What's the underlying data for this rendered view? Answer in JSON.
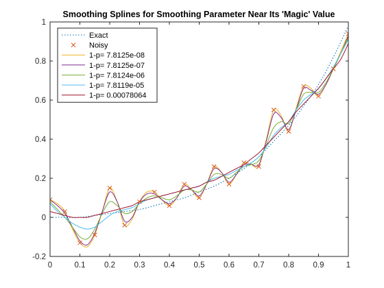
{
  "colors": {
    "exact": "#0072BD",
    "noisy": "#D95319",
    "spline_1": "#EDB120",
    "spline_2": "#7E2F8E",
    "spline_3": "#77AC30",
    "spline_4": "#4DBEEE",
    "spline_5": "#A2142F",
    "axis": "#262626"
  },
  "chart_data": {
    "type": "line",
    "title": "Smoothing Splines for Smoothing Parameter Near Its 'Magic' Value",
    "xlabel": "",
    "ylabel": "",
    "xlim": [
      0,
      1
    ],
    "ylim": [
      -0.2,
      1
    ],
    "x_ticks": [
      0,
      0.1,
      0.2,
      0.3,
      0.4,
      0.5,
      0.6,
      0.7,
      0.8,
      0.9,
      1
    ],
    "x_tick_labels": [
      "0",
      "0.1",
      "0.2",
      "0.3",
      "0.4",
      "0.5",
      "0.6",
      "0.7",
      "0.8",
      "0.9",
      "1"
    ],
    "y_ticks": [
      -0.2,
      0,
      0.2,
      0.4,
      0.6,
      0.8,
      1
    ],
    "y_tick_labels": [
      "-0.2",
      "0",
      "0.2",
      "0.4",
      "0.6",
      "0.8",
      "1"
    ],
    "grid": false,
    "legend_position": "top-left",
    "noisy_points": {
      "x": [
        0,
        0.05,
        0.1,
        0.15,
        0.2,
        0.25,
        0.3,
        0.35,
        0.4,
        0.45,
        0.5,
        0.55,
        0.6,
        0.65,
        0.7,
        0.75,
        0.8,
        0.85,
        0.9,
        0.95,
        1
      ],
      "y": [
        0.09,
        0.03,
        -0.13,
        -0.09,
        0.15,
        -0.04,
        0.08,
        0.13,
        0.06,
        0.17,
        0.1,
        0.26,
        0.17,
        0.28,
        0.26,
        0.55,
        0.44,
        0.67,
        0.62,
        0.76,
        0.94
      ]
    },
    "series": [
      {
        "name": "Exact",
        "style": "dotted",
        "x": [
          0,
          0.05,
          0.1,
          0.15,
          0.2,
          0.25,
          0.3,
          0.35,
          0.4,
          0.45,
          0.5,
          0.55,
          0.6,
          0.65,
          0.7,
          0.75,
          0.8,
          0.85,
          0.9,
          0.95,
          1
        ],
        "y": [
          0.0,
          0.0,
          0.0,
          0.01,
          0.02,
          0.03,
          0.04,
          0.06,
          0.08,
          0.1,
          0.13,
          0.16,
          0.2,
          0.25,
          0.31,
          0.39,
          0.47,
          0.57,
          0.68,
          0.82,
          0.98
        ]
      },
      {
        "name": "1-p= 7.8125e-08",
        "style": "solid",
        "x": [
          0,
          0.025,
          0.05,
          0.075,
          0.1,
          0.125,
          0.15,
          0.175,
          0.2,
          0.225,
          0.25,
          0.275,
          0.3,
          0.325,
          0.35,
          0.375,
          0.4,
          0.425,
          0.45,
          0.475,
          0.5,
          0.525,
          0.55,
          0.575,
          0.6,
          0.625,
          0.65,
          0.675,
          0.7,
          0.725,
          0.75,
          0.775,
          0.8,
          0.825,
          0.85,
          0.875,
          0.9,
          0.925,
          0.95,
          0.975,
          1
        ],
        "y": [
          0.09,
          0.07,
          0.03,
          -0.06,
          -0.13,
          -0.15,
          -0.09,
          0.03,
          0.15,
          0.08,
          -0.04,
          -0.01,
          0.08,
          0.13,
          0.13,
          0.09,
          0.06,
          0.1,
          0.17,
          0.14,
          0.1,
          0.17,
          0.26,
          0.23,
          0.17,
          0.22,
          0.28,
          0.27,
          0.26,
          0.4,
          0.55,
          0.52,
          0.44,
          0.56,
          0.67,
          0.66,
          0.62,
          0.68,
          0.76,
          0.85,
          0.94
        ]
      },
      {
        "name": "1-p= 7.8125e-07",
        "style": "solid",
        "x": [
          0,
          0.025,
          0.05,
          0.075,
          0.1,
          0.125,
          0.15,
          0.175,
          0.2,
          0.225,
          0.25,
          0.275,
          0.3,
          0.325,
          0.35,
          0.375,
          0.4,
          0.425,
          0.45,
          0.475,
          0.5,
          0.525,
          0.55,
          0.575,
          0.6,
          0.625,
          0.65,
          0.675,
          0.7,
          0.725,
          0.75,
          0.775,
          0.8,
          0.825,
          0.85,
          0.875,
          0.9,
          0.925,
          0.95,
          0.975,
          1
        ],
        "y": [
          0.09,
          0.06,
          0.02,
          -0.05,
          -0.12,
          -0.14,
          -0.08,
          0.03,
          0.13,
          0.08,
          -0.02,
          0.0,
          0.08,
          0.12,
          0.12,
          0.09,
          0.07,
          0.1,
          0.16,
          0.14,
          0.11,
          0.17,
          0.25,
          0.23,
          0.18,
          0.22,
          0.27,
          0.27,
          0.27,
          0.39,
          0.53,
          0.51,
          0.45,
          0.55,
          0.66,
          0.65,
          0.63,
          0.68,
          0.76,
          0.84,
          0.93
        ]
      },
      {
        "name": "1-p= 7.8124e-06",
        "style": "solid",
        "x": [
          0,
          0.025,
          0.05,
          0.075,
          0.1,
          0.125,
          0.15,
          0.175,
          0.2,
          0.225,
          0.25,
          0.275,
          0.3,
          0.325,
          0.35,
          0.375,
          0.4,
          0.425,
          0.45,
          0.475,
          0.5,
          0.525,
          0.55,
          0.575,
          0.6,
          0.625,
          0.65,
          0.675,
          0.7,
          0.725,
          0.75,
          0.775,
          0.8,
          0.825,
          0.85,
          0.875,
          0.9,
          0.925,
          0.95,
          0.975,
          1
        ],
        "y": [
          0.08,
          0.04,
          0.0,
          -0.05,
          -0.1,
          -0.11,
          -0.06,
          0.02,
          0.08,
          0.06,
          0.02,
          0.03,
          0.07,
          0.1,
          0.11,
          0.1,
          0.09,
          0.11,
          0.14,
          0.14,
          0.13,
          0.17,
          0.22,
          0.22,
          0.2,
          0.23,
          0.26,
          0.27,
          0.29,
          0.37,
          0.46,
          0.49,
          0.48,
          0.55,
          0.63,
          0.64,
          0.64,
          0.69,
          0.76,
          0.84,
          0.92
        ]
      },
      {
        "name": "1-p= 7.8119e-05",
        "style": "solid",
        "x": [
          0,
          0.025,
          0.05,
          0.075,
          0.1,
          0.125,
          0.15,
          0.175,
          0.2,
          0.225,
          0.25,
          0.275,
          0.3,
          0.325,
          0.35,
          0.375,
          0.4,
          0.425,
          0.45,
          0.475,
          0.5,
          0.525,
          0.55,
          0.575,
          0.6,
          0.625,
          0.65,
          0.675,
          0.7,
          0.725,
          0.75,
          0.775,
          0.8,
          0.825,
          0.85,
          0.875,
          0.9,
          0.925,
          0.95,
          0.975,
          1
        ],
        "y": [
          0.07,
          0.03,
          0.0,
          -0.03,
          -0.05,
          -0.06,
          -0.05,
          -0.02,
          0.01,
          0.03,
          0.04,
          0.05,
          0.07,
          0.09,
          0.1,
          0.11,
          0.12,
          0.13,
          0.14,
          0.15,
          0.16,
          0.18,
          0.2,
          0.21,
          0.22,
          0.24,
          0.26,
          0.28,
          0.31,
          0.36,
          0.42,
          0.46,
          0.49,
          0.55,
          0.6,
          0.63,
          0.66,
          0.71,
          0.77,
          0.84,
          0.91
        ]
      },
      {
        "name": "1-p= 0.00078064",
        "style": "solid",
        "x": [
          0,
          0.025,
          0.05,
          0.075,
          0.1,
          0.125,
          0.15,
          0.175,
          0.2,
          0.225,
          0.25,
          0.275,
          0.3,
          0.325,
          0.35,
          0.375,
          0.4,
          0.425,
          0.45,
          0.475,
          0.5,
          0.525,
          0.55,
          0.575,
          0.6,
          0.625,
          0.65,
          0.675,
          0.7,
          0.725,
          0.75,
          0.775,
          0.8,
          0.825,
          0.85,
          0.875,
          0.9,
          0.925,
          0.95,
          0.975,
          1
        ],
        "y": [
          0.03,
          0.02,
          0.01,
          0.0,
          0.0,
          0.0,
          0.01,
          0.02,
          0.03,
          0.04,
          0.05,
          0.06,
          0.08,
          0.09,
          0.1,
          0.11,
          0.12,
          0.13,
          0.14,
          0.15,
          0.16,
          0.18,
          0.19,
          0.21,
          0.23,
          0.25,
          0.27,
          0.3,
          0.33,
          0.37,
          0.41,
          0.45,
          0.49,
          0.54,
          0.58,
          0.62,
          0.66,
          0.71,
          0.76,
          0.81,
          0.89
        ]
      }
    ],
    "legend": [
      {
        "label": "Exact",
        "kind": "dotted-line",
        "color_key": "exact"
      },
      {
        "label": "Noisy",
        "kind": "marker-x",
        "color_key": "noisy"
      },
      {
        "label": "1-p= 7.8125e-08",
        "kind": "line",
        "color_key": "spline_1"
      },
      {
        "label": "1-p= 7.8125e-07",
        "kind": "line",
        "color_key": "spline_2"
      },
      {
        "label": "1-p= 7.8124e-06",
        "kind": "line",
        "color_key": "spline_3"
      },
      {
        "label": "1-p= 7.8119e-05",
        "kind": "line",
        "color_key": "spline_4"
      },
      {
        "label": "1-p= 0.00078064",
        "kind": "line",
        "color_key": "spline_5"
      }
    ]
  }
}
